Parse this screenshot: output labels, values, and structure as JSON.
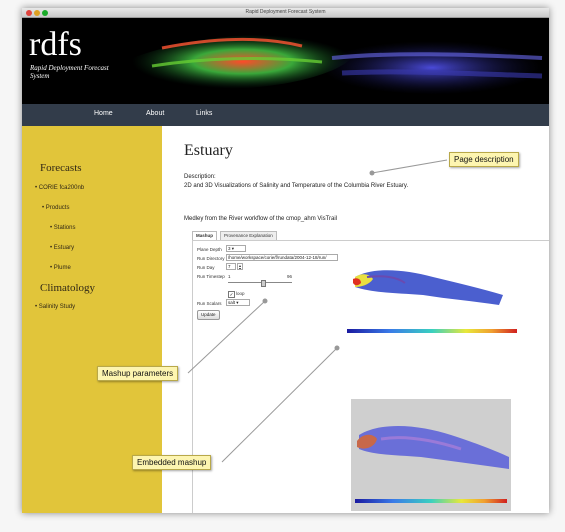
{
  "window": {
    "title": "Rapid Deployment Forecast System"
  },
  "header": {
    "logo": "rdfs",
    "subtitle": "Rapid Deployment Forecast System"
  },
  "nav": {
    "items": [
      "Home",
      "About",
      "Links"
    ]
  },
  "sidebar": {
    "forecasts_heading": "Forecasts",
    "forecast_items": [
      "CORIE fca200nb",
      "Products",
      "Stations",
      "Estuary",
      "Plume"
    ],
    "climatology_heading": "Climatology",
    "climatology_items": [
      "Salinity Study"
    ]
  },
  "main": {
    "title": "Estuary",
    "description_label": "Description:",
    "description_text": "2D and 3D Visualizations of Salinity and Temperature of the Columbia River Estuary.",
    "medley_text": "Medley from the River workflow of the cmop_ahm VisTrail"
  },
  "tabs": [
    "Mashup",
    "Provenance Explanation"
  ],
  "mashup": {
    "plane_depth_label": "Plane Depth",
    "plane_depth_value": "3",
    "run_directory_label": "Run Directory",
    "run_directory_value": "/home/workspace/corie/f/rundata/2004-12-18/run/",
    "run_day_label": "Run Day",
    "run_day_value": "7",
    "run_timestep_label": "Run Timestep",
    "run_timestep_min": "1",
    "run_timestep_max": "96",
    "timestep_fraction": 0.55,
    "loop_label": "loop",
    "run_scalars_label": "Run Scalars",
    "run_scalars_value": "salt",
    "update_label": "Update"
  },
  "callouts": {
    "page_description": "Page description",
    "mashup_parameters": "Mashup parameters",
    "embedded_mashup": "Embedded mashup"
  },
  "colors": {
    "sidebar_bg": "#e1c53a",
    "navbar_bg": "#323c4a",
    "header_bg": "#000000",
    "callout_bg": "#fdf5b0"
  }
}
